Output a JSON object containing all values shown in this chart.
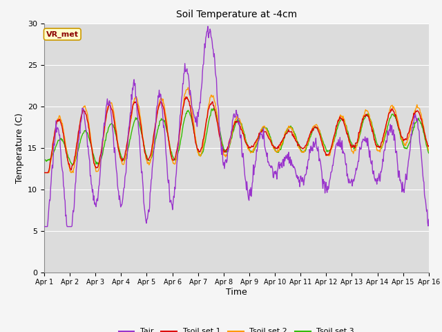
{
  "title": "Soil Temperature at -4cm",
  "xlabel": "Time",
  "ylabel": "Temperature (C)",
  "ylim": [
    0,
    30
  ],
  "yticks": [
    0,
    5,
    10,
    15,
    20,
    25,
    30
  ],
  "xtick_labels": [
    "Apr 1",
    "Apr 2",
    "Apr 3",
    "Apr 4",
    "Apr 5",
    "Apr 6",
    "Apr 7",
    "Apr 8",
    "Apr 9",
    "Apr 10",
    "Apr 11",
    "Apr 12",
    "Apr 13",
    "Apr 14",
    "Apr 15",
    "Apr 16"
  ],
  "site_label": "VR_met",
  "colors": {
    "Tair": "#9933cc",
    "Tsoil1": "#dd0000",
    "Tsoil2": "#ff9900",
    "Tsoil3": "#33bb00"
  },
  "plot_bg": "#dcdcdc",
  "fig_bg": "#f5f5f5",
  "grid_color": "#ffffff",
  "n_days": 15
}
